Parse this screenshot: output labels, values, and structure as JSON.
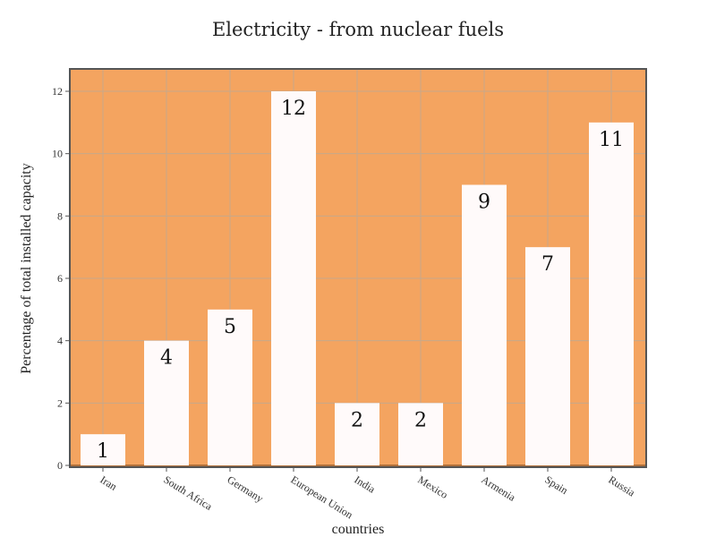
{
  "colors": {
    "plot_background": "#f4a460",
    "bar_fill": "#fffafa",
    "grid": "#c7a98a",
    "frame": "#555555"
  },
  "chart_data": {
    "type": "bar",
    "title": "Electricity - from nuclear fuels",
    "xlabel": "countries",
    "ylabel": "Percentage of total installed capacity",
    "categories": [
      "Iran",
      "South Africa",
      "Germany",
      "European Union",
      "India",
      "Mexico",
      "Armenia",
      "Spain",
      "Russia"
    ],
    "values": [
      1,
      4,
      5,
      12,
      2,
      2,
      9,
      7,
      11
    ],
    "ylim": [
      0,
      12.5
    ],
    "yticks": [
      0,
      2,
      4,
      6,
      8,
      10,
      12
    ],
    "grid": true,
    "legend": "none"
  }
}
